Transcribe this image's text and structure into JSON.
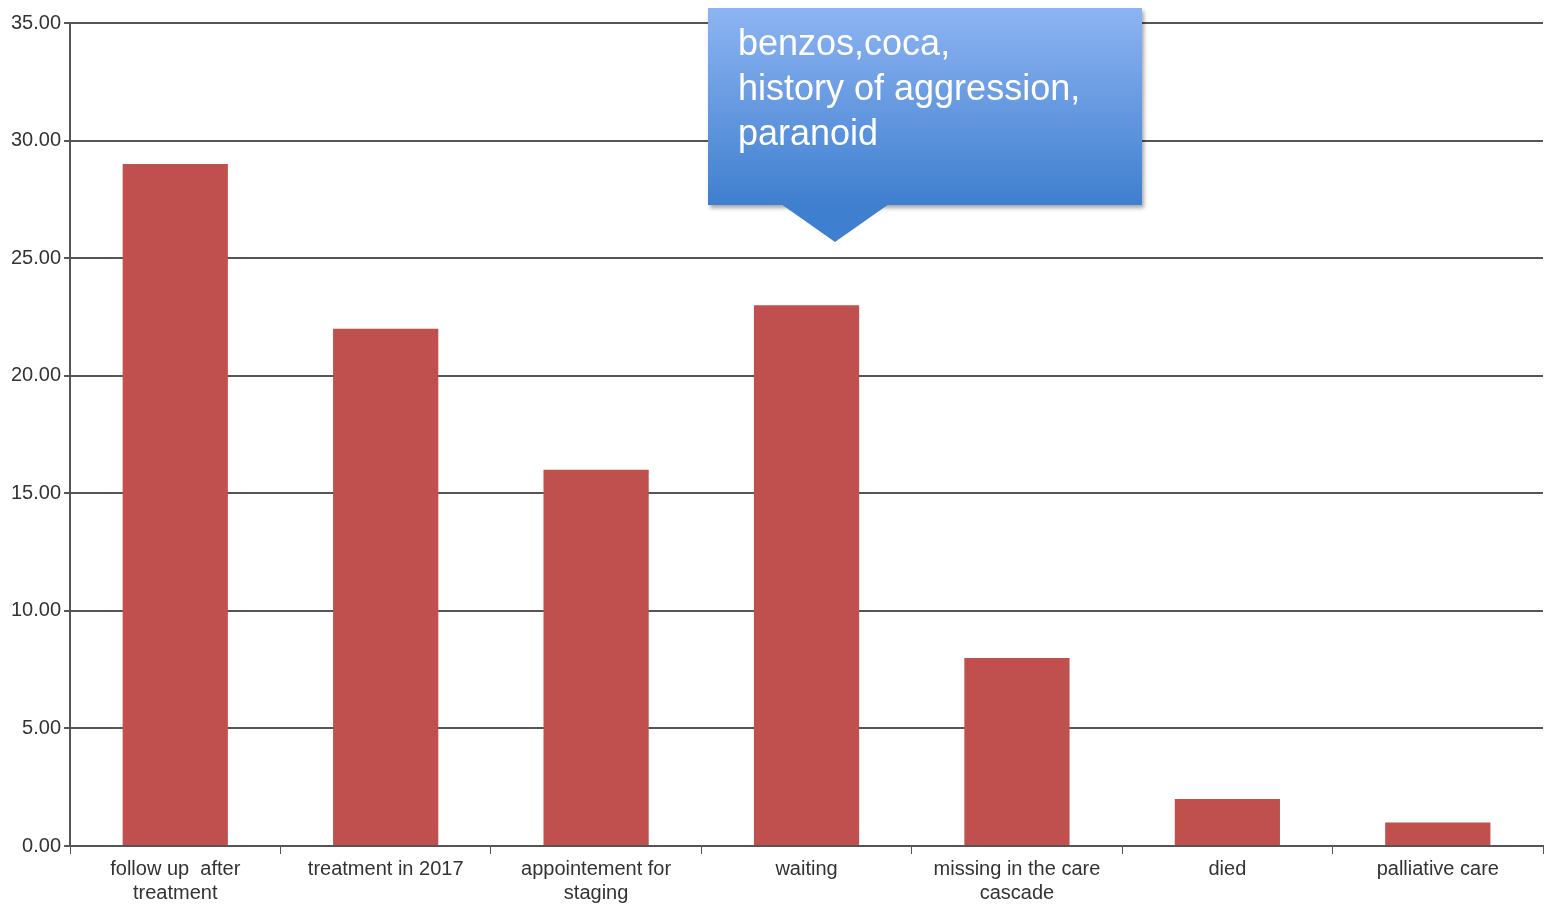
{
  "chart_data": {
    "type": "bar",
    "categories": [
      "follow up  after treatment",
      "treatment in 2017",
      "appointement for staging",
      "waiting",
      "missing in the care cascade",
      "died",
      "palliative care"
    ],
    "values": [
      29,
      22,
      16,
      23,
      8,
      2,
      1
    ],
    "color": "#c0504d",
    "ylim": [
      0,
      35
    ],
    "yticks": [
      {
        "value": 0,
        "label": "0.00"
      },
      {
        "value": 5,
        "label": "5.00"
      },
      {
        "value": 10,
        "label": "10.00"
      },
      {
        "value": 15,
        "label": "15.00"
      },
      {
        "value": 20,
        "label": "20.00"
      },
      {
        "value": 25,
        "label": "25.00"
      },
      {
        "value": 30,
        "label": "30.00"
      },
      {
        "value": 35,
        "label": "35.00"
      }
    ],
    "grid": "y",
    "legend": false,
    "annotations": [
      "benzos,coca,\nhistory of aggression,\nparanoid"
    ]
  }
}
